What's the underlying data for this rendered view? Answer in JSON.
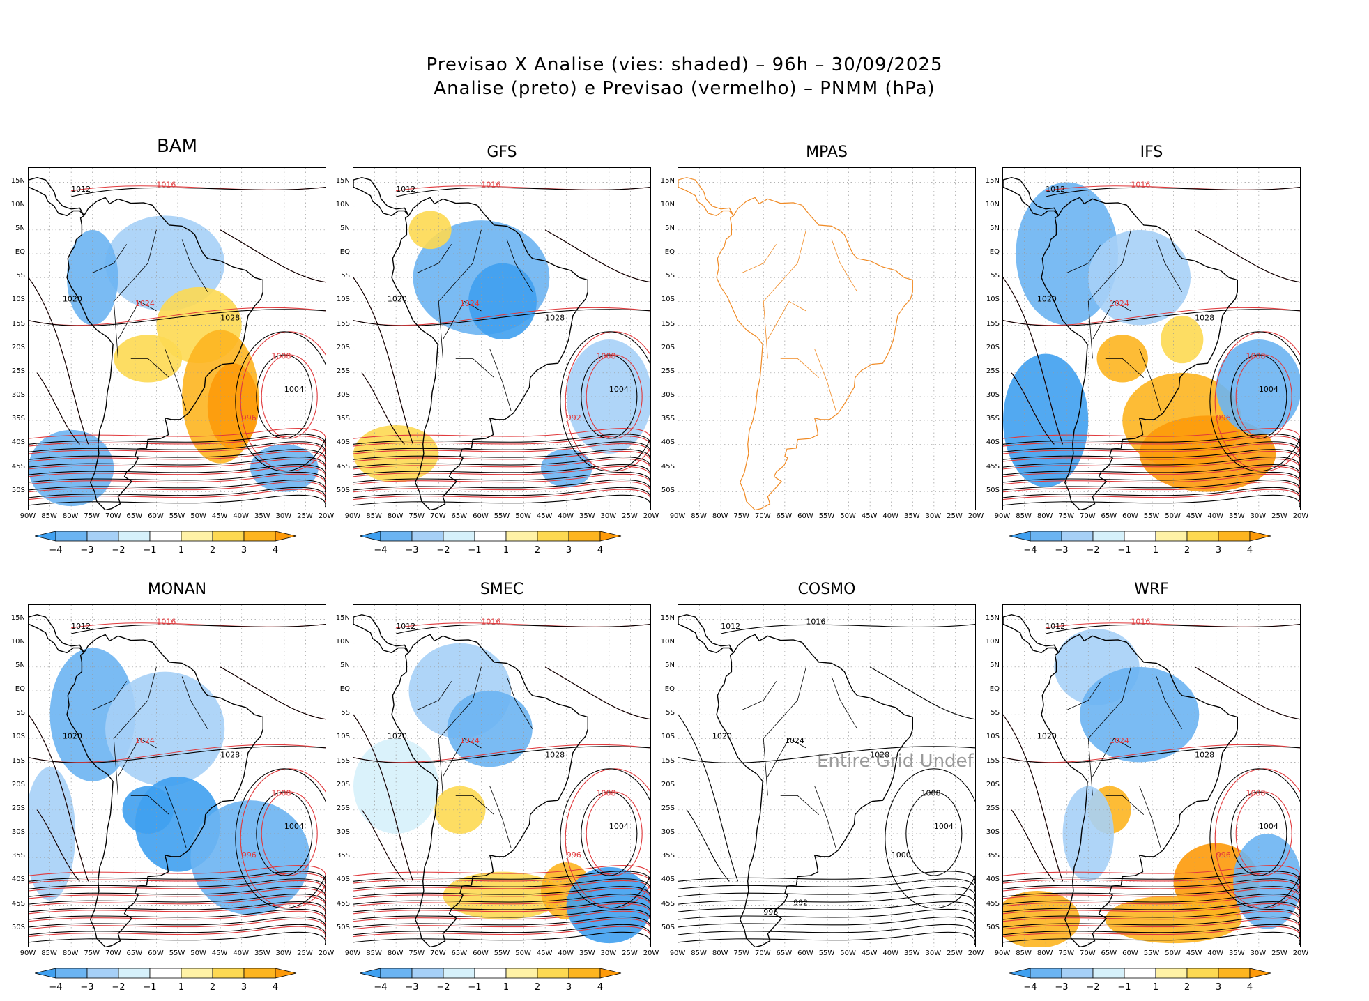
{
  "title_line1": "Previsao X Analise (vies: shaded) – 96h – 30/09/2025",
  "title_line2": "Analise (preto) e Previsao (vermelho) – PNMM (hPa)",
  "lat_ticks": [
    "15N",
    "10N",
    "5N",
    "EQ",
    "5S",
    "10S",
    "15S",
    "20S",
    "25S",
    "30S",
    "35S",
    "40S",
    "45S",
    "50S"
  ],
  "lon_ticks": [
    "90W",
    "85W",
    "80W",
    "75W",
    "70W",
    "65W",
    "60W",
    "55W",
    "50W",
    "45W",
    "40W",
    "35W",
    "30W",
    "25W",
    "20W"
  ],
  "colorbar": {
    "labels": [
      "−4",
      "−3",
      "−2",
      "−1",
      "1",
      "2",
      "3",
      "4"
    ],
    "colors": [
      "#3fa0f0",
      "#6bb4f2",
      "#a6d0f7",
      "#d6f1fb",
      "#ffffff",
      "#fff2a6",
      "#fdd952",
      "#fdb520",
      "#fd9a0a"
    ]
  },
  "panels": [
    {
      "name": "BAM",
      "style": "bias",
      "big": true,
      "labels": [
        "1012",
        "1016",
        "1020",
        "1024",
        "1028",
        "1008",
        "1004",
        "996"
      ]
    },
    {
      "name": "GFS",
      "style": "bias",
      "big": false,
      "labels": [
        "1012",
        "1016",
        "1020",
        "1024",
        "1028",
        "1008",
        "1004",
        "992"
      ]
    },
    {
      "name": "MPAS",
      "style": "coast",
      "big": false,
      "labels": []
    },
    {
      "name": "IFS",
      "style": "bias",
      "big": false,
      "labels": [
        "1012",
        "1016",
        "1020",
        "1024",
        "1028",
        "1008",
        "1004",
        "996"
      ]
    },
    {
      "name": "MONAN",
      "style": "bias",
      "big": false,
      "labels": [
        "1012",
        "1016",
        "1020",
        "1024",
        "1028",
        "1008",
        "1004",
        "996"
      ]
    },
    {
      "name": "SMEC",
      "style": "bias",
      "big": false,
      "labels": [
        "1012",
        "1016",
        "1020",
        "1024",
        "1028",
        "1008",
        "1004",
        "996"
      ]
    },
    {
      "name": "COSMO",
      "style": "contour",
      "big": false,
      "labels": [
        "1012",
        "1016",
        "1020",
        "1024",
        "1028",
        "1008",
        "1004",
        "1000",
        "996",
        "992"
      ],
      "overlay": "Entire Grid Undef"
    },
    {
      "name": "WRF",
      "style": "bias",
      "big": false,
      "labels": [
        "1012",
        "1016",
        "1020",
        "1024",
        "1028",
        "1008",
        "1004",
        "996"
      ]
    }
  ]
}
